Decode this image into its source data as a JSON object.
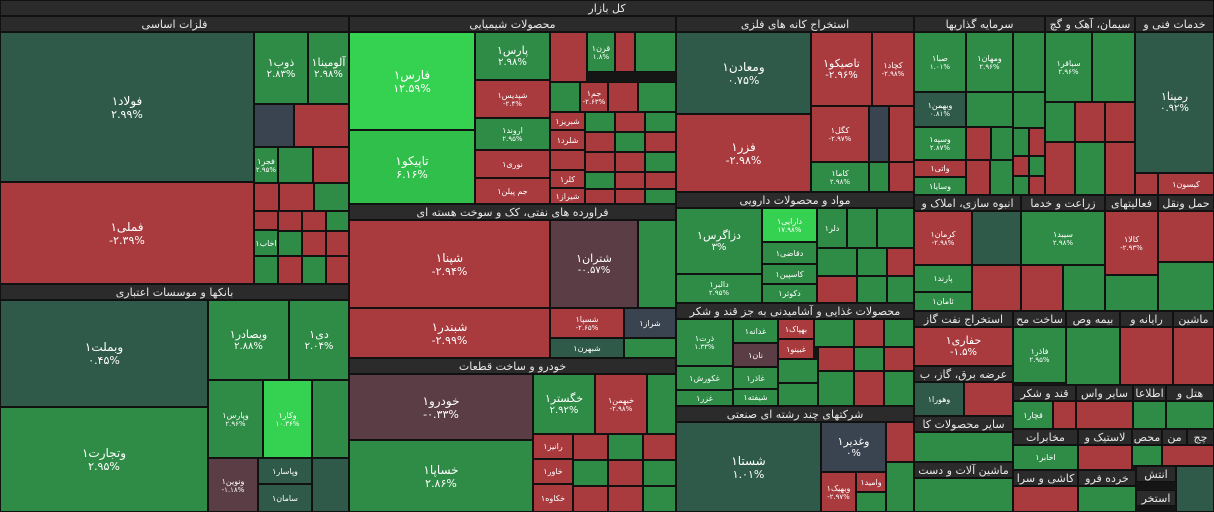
{
  "colors": {
    "dark_red": "#a93a3e",
    "red": "#b8403f",
    "mid_red": "#9e3a3c",
    "plum": "#5b3d46",
    "slate": "#3a4350",
    "dark_green": "#2f5a49",
    "green": "#2e8c46",
    "bright_green": "#2fbf4a",
    "light_green": "#35d150"
  },
  "root_title": "کل بازار",
  "sectors": [
    {
      "key": "metals",
      "title": "فلزات اساسی"
    },
    {
      "key": "banks",
      "title": "بانکها و موسسات اعتباری"
    },
    {
      "key": "chem",
      "title": "محصولات شیمیایی"
    },
    {
      "key": "refinery",
      "title": "فراورده های نفتی، کک و سوخت هسته ای"
    },
    {
      "key": "auto",
      "title": "خودرو و ساخت قطعات"
    },
    {
      "key": "mining",
      "title": "استخراج کانه های فلزی"
    },
    {
      "key": "pharma",
      "title": "مواد و محصولات دارویی"
    },
    {
      "key": "food",
      "title": "محصولات غذایی و آشامیدنی به جز قند و شکر"
    },
    {
      "key": "multi",
      "title": "شرکتهای چند رشته ای صنعتی"
    },
    {
      "key": "invest",
      "title": "سرمایه گذاریها"
    },
    {
      "key": "cement",
      "title": "سیمان، آهک و گچ"
    },
    {
      "key": "tech",
      "title": "خدمات فنی و"
    },
    {
      "key": "realestate",
      "title": "انبوه سازی، املاک و"
    },
    {
      "key": "agri",
      "title": "زراعت و خدما"
    },
    {
      "key": "other_fin",
      "title": "فعالیتهای"
    },
    {
      "key": "transport",
      "title": "حمل ونقل"
    },
    {
      "key": "oilgas",
      "title": "استخراج نفت گاز"
    },
    {
      "key": "pipe",
      "title": "ساخت مح"
    },
    {
      "key": "insurance",
      "title": "بیمه وص"
    },
    {
      "key": "computer",
      "title": "رایانه و"
    },
    {
      "key": "machinery",
      "title": "ماشین"
    },
    {
      "key": "utility",
      "title": "عرضه برق، گاز، ب"
    },
    {
      "key": "sugar",
      "title": "قند و شکر"
    },
    {
      "key": "misc_fin",
      "title": "سایر واس"
    },
    {
      "key": "info",
      "title": "اطلاعا"
    },
    {
      "key": "hotel",
      "title": "هتل و"
    },
    {
      "key": "other_mineral",
      "title": "سایر محصولات کا"
    },
    {
      "key": "textile",
      "title": "مخابرات"
    },
    {
      "key": "rubber",
      "title": "لاستیک و"
    },
    {
      "key": "mahs",
      "title": "محص"
    },
    {
      "key": "mn",
      "title": "من"
    },
    {
      "key": "ch",
      "title": "چج"
    },
    {
      "key": "equip",
      "title": "ماشین آلات و دست"
    },
    {
      "key": "ceramic",
      "title": "کاشی و سرا"
    },
    {
      "key": "retail",
      "title": "خرده فرو"
    },
    {
      "key": "intesh",
      "title": "انتش"
    },
    {
      "key": "tolid",
      "title": "تولید"
    },
    {
      "key": "estekhr",
      "title": "استخر"
    }
  ],
  "tiles": [
    {
      "name": "فولاد۱",
      "pct": "۲.۹۹%",
      "c": "dark_green"
    },
    {
      "name": "فملی۱",
      "pct": "-۲.۳۹%",
      "c": "dark_red"
    },
    {
      "name": "ذوب۱",
      "pct": "۲.۸۳%",
      "c": "green"
    },
    {
      "name": "آلومینا۱",
      "pct": "۲.۹۸%",
      "c": "green"
    },
    {
      "name": "فجر۱",
      "pct": "۲.۹۵%",
      "c": "green"
    },
    {
      "name": "اخاب۱",
      "pct": "",
      "c": "green"
    },
    {
      "name": "وبملت۱",
      "pct": "۰.۴۵%",
      "c": "dark_green"
    },
    {
      "name": "وتجارت۱",
      "pct": "۲.۹۵%",
      "c": "green"
    },
    {
      "name": "وبصادر۱",
      "pct": "۲.۸۸%",
      "c": "green"
    },
    {
      "name": "دی۱",
      "pct": "۲.۰۴%",
      "c": "green"
    },
    {
      "name": "وپارس۱",
      "pct": "۲.۹۶%",
      "c": "green"
    },
    {
      "name": "وکار۱",
      "pct": "۱۰.۳۶%",
      "c": "light_green"
    },
    {
      "name": "ونوین۱",
      "pct": "-۱.۱۸%",
      "c": "plum"
    },
    {
      "name": "وپاسار۱",
      "pct": "",
      "c": "dark_green"
    },
    {
      "name": "سامان۱",
      "pct": "",
      "c": "dark_green"
    },
    {
      "name": "فارس۱",
      "pct": "۱۲.۵۹%",
      "c": "light_green"
    },
    {
      "name": "تاپیکو۱",
      "pct": "۶.۱۶%",
      "c": "bright_green"
    },
    {
      "name": "پارس۱",
      "pct": "۲.۹۸%",
      "c": "green"
    },
    {
      "name": "شپدیس۱",
      "pct": "-۲.۴%",
      "c": "dark_red"
    },
    {
      "name": "اروند۱",
      "pct": "۲.۹۵%",
      "c": "green"
    },
    {
      "name": "نوری۱",
      "pct": "",
      "c": "dark_red"
    },
    {
      "name": "جم پیلن۱",
      "pct": "",
      "c": "dark_red"
    },
    {
      "name": "شبریز۱",
      "pct": "",
      "c": "dark_red"
    },
    {
      "name": "شلرد۱",
      "pct": "",
      "c": "dark_red"
    },
    {
      "name": "کلر۱",
      "pct": "",
      "c": "dark_red"
    },
    {
      "name": "شیراز۱",
      "pct": "",
      "c": "dark_red"
    },
    {
      "name": "جم۱",
      "pct": "-۲.۶۳%",
      "c": "dark_red"
    },
    {
      "name": "قرن۱",
      "pct": "۱.۸%",
      "c": "green"
    },
    {
      "name": "شپنا۱",
      "pct": "-۲.۹۴%",
      "c": "dark_red"
    },
    {
      "name": "شبندر۱",
      "pct": "-۲.۹۹%",
      "c": "dark_red"
    },
    {
      "name": "شتران۱",
      "pct": "-۰.۵۷%",
      "c": "plum"
    },
    {
      "name": "شسپا۱",
      "pct": "-۲.۶۵%",
      "c": "dark_red"
    },
    {
      "name": "شراز۱",
      "pct": "",
      "c": "slate"
    },
    {
      "name": "شبهرن۱",
      "pct": "",
      "c": "dark_green"
    },
    {
      "name": "خودرو۱",
      "pct": "-۰.۳۳%",
      "c": "plum"
    },
    {
      "name": "خساپا۱",
      "pct": "۲.۸۶%",
      "c": "green"
    },
    {
      "name": "خگستر۱",
      "pct": "۲.۹۲%",
      "c": "green"
    },
    {
      "name": "خبهمن۱",
      "pct": "-۲.۹۸%",
      "c": "dark_red"
    },
    {
      "name": "رانیز۱",
      "pct": "",
      "c": "dark_red"
    },
    {
      "name": "خاور۱",
      "pct": "",
      "c": "dark_red"
    },
    {
      "name": "خکاوه۱",
      "pct": "",
      "c": "dark_red"
    },
    {
      "name": "ومعادن۱",
      "pct": "۰.۷۵%",
      "c": "dark_green"
    },
    {
      "name": "فزر۱",
      "pct": "-۲.۹۸%",
      "c": "dark_red"
    },
    {
      "name": "تاصیکو۱",
      "pct": "-۲.۹۶%",
      "c": "dark_red"
    },
    {
      "name": "کچاد۱",
      "pct": "-۲.۹۸%",
      "c": "dark_red"
    },
    {
      "name": "کگل۱",
      "pct": "-۲.۹۷%",
      "c": "dark_red"
    },
    {
      "name": "کاما۱",
      "pct": "۲.۹۸%",
      "c": "green"
    },
    {
      "name": "دزاگرس۱",
      "pct": "۳%",
      "c": "green"
    },
    {
      "name": "دالبر۱",
      "pct": "۲.۹۵%",
      "c": "green"
    },
    {
      "name": "دارایی۱",
      "pct": "۱۷.۹۸%",
      "c": "light_green"
    },
    {
      "name": "دقاضی۱",
      "pct": "",
      "c": "green"
    },
    {
      "name": "کاسپین۱",
      "pct": "",
      "c": "green"
    },
    {
      "name": "دکوثر۱",
      "pct": "",
      "c": "green"
    },
    {
      "name": "دلر۱",
      "pct": "",
      "c": "green"
    },
    {
      "name": "ذرت۱",
      "pct": "۱.۳۳%",
      "c": "green"
    },
    {
      "name": "غکورش۱",
      "pct": "",
      "c": "green"
    },
    {
      "name": "غزر۱",
      "pct": "",
      "c": "green"
    },
    {
      "name": "غدانه۱",
      "pct": "",
      "c": "green"
    },
    {
      "name": "نان۱",
      "pct": "",
      "c": "plum"
    },
    {
      "name": "غاذر۱",
      "pct": "",
      "c": "green"
    },
    {
      "name": "بهپاک۱",
      "pct": "",
      "c": "dark_red"
    },
    {
      "name": "غبینو۱",
      "pct": "",
      "c": "dark_red"
    },
    {
      "name": "شیفته۱",
      "pct": "",
      "c": "green"
    },
    {
      "name": "شستا۱",
      "pct": "۱.۰۱%",
      "c": "dark_green"
    },
    {
      "name": "وغدیر۱",
      "pct": "۰%",
      "c": "slate"
    },
    {
      "name": "وامید۱",
      "pct": "",
      "c": "dark_red"
    },
    {
      "name": "وبهیک۱",
      "pct": "-۲.۹۷%",
      "c": "dark_red"
    },
    {
      "name": "صبا۱",
      "pct": "۱.۰۱%",
      "c": "green"
    },
    {
      "name": "ومهان۱",
      "pct": "۲.۹۶%",
      "c": "green"
    },
    {
      "name": "وبهمن۱",
      "pct": "۰.۸۱%",
      "c": "dark_green"
    },
    {
      "name": "وسپه۱",
      "pct": "۲.۸۷%",
      "c": "green"
    },
    {
      "name": "واتی۱",
      "pct": "",
      "c": "dark_red"
    },
    {
      "name": "وسایا۱",
      "pct": "",
      "c": "green"
    },
    {
      "name": "سباقر۱",
      "pct": "۲.۹۶%",
      "c": "green"
    },
    {
      "name": "رمپنا۱",
      "pct": "۰.۹۲%",
      "c": "dark_green"
    },
    {
      "name": "کیسون۱",
      "pct": "",
      "c": "dark_red"
    },
    {
      "name": "کرمان۱",
      "pct": "-۲.۹۸%",
      "c": "dark_red"
    },
    {
      "name": "پارند۱",
      "pct": "",
      "c": "green"
    },
    {
      "name": "ثامان۱",
      "pct": "",
      "c": "green"
    },
    {
      "name": "سیبد۱",
      "pct": "۲.۹۸%",
      "c": "green"
    },
    {
      "name": "کالا۱",
      "pct": "-۲.۹۳%",
      "c": "dark_red"
    },
    {
      "name": "حفاری۱",
      "pct": "-۱.۵%",
      "c": "dark_red"
    },
    {
      "name": "فاذر۱",
      "pct": "۲.۹۵%",
      "c": "green"
    },
    {
      "name": "وهورا۱",
      "pct": "",
      "c": "dark_green"
    },
    {
      "name": "قچار۱",
      "pct": "",
      "c": "green"
    },
    {
      "name": "اخابر۱",
      "pct": "",
      "c": "green"
    }
  ]
}
